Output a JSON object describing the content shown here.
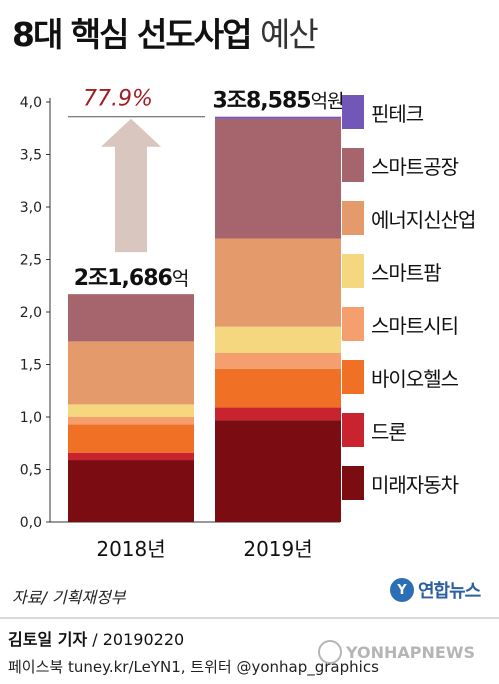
{
  "title": {
    "main": "8대 핵심 선도사업",
    "light": "예산"
  },
  "chart_data": {
    "type": "bar",
    "stacked": true,
    "categories": [
      "2018년",
      "2019년"
    ],
    "ylim": [
      0,
      4.0
    ],
    "yticks": [
      "0,0",
      "0,5",
      "1,0",
      "1,5",
      "2,0",
      "2,5",
      "3,0",
      "3,5",
      "4,0"
    ],
    "series": [
      {
        "name": "미래자동차",
        "color": "#7b0d12",
        "values": [
          0.59,
          0.97
        ]
      },
      {
        "name": "드론",
        "color": "#c8232e",
        "values": [
          0.07,
          0.12
        ]
      },
      {
        "name": "바이오헬스",
        "color": "#f07126",
        "values": [
          0.27,
          0.37
        ]
      },
      {
        "name": "스마트시티",
        "color": "#f59e6e",
        "values": [
          0.07,
          0.15
        ]
      },
      {
        "name": "스마트팜",
        "color": "#f5d77f",
        "values": [
          0.12,
          0.25
        ]
      },
      {
        "name": "에너지신산업",
        "color": "#e49a6a",
        "values": [
          0.6,
          0.84
        ]
      },
      {
        "name": "스마트공장",
        "color": "#a6646c",
        "values": [
          0.45,
          1.14
        ]
      },
      {
        "name": "핀테크",
        "color": "#7256b8",
        "values": [
          0.0,
          0.02
        ]
      }
    ],
    "totals": [
      {
        "big": "2조1,686",
        "small": "억"
      },
      {
        "big": "3조8,585",
        "small": "억원"
      }
    ],
    "growth_label": "77.9%",
    "growth_color": "#a01e24",
    "arrow_color": "#d9c6bf"
  },
  "source": "자료/ 기획재정부",
  "logo": {
    "mark": "Y",
    "text": "연합뉴스"
  },
  "byline": {
    "name": "김토일 기자",
    "date": " / 20190220"
  },
  "social": "페이스북 tuney.kr/LeYN1, 트위터 @yonhap_graphics",
  "watermark": "YONHAPNEWS"
}
